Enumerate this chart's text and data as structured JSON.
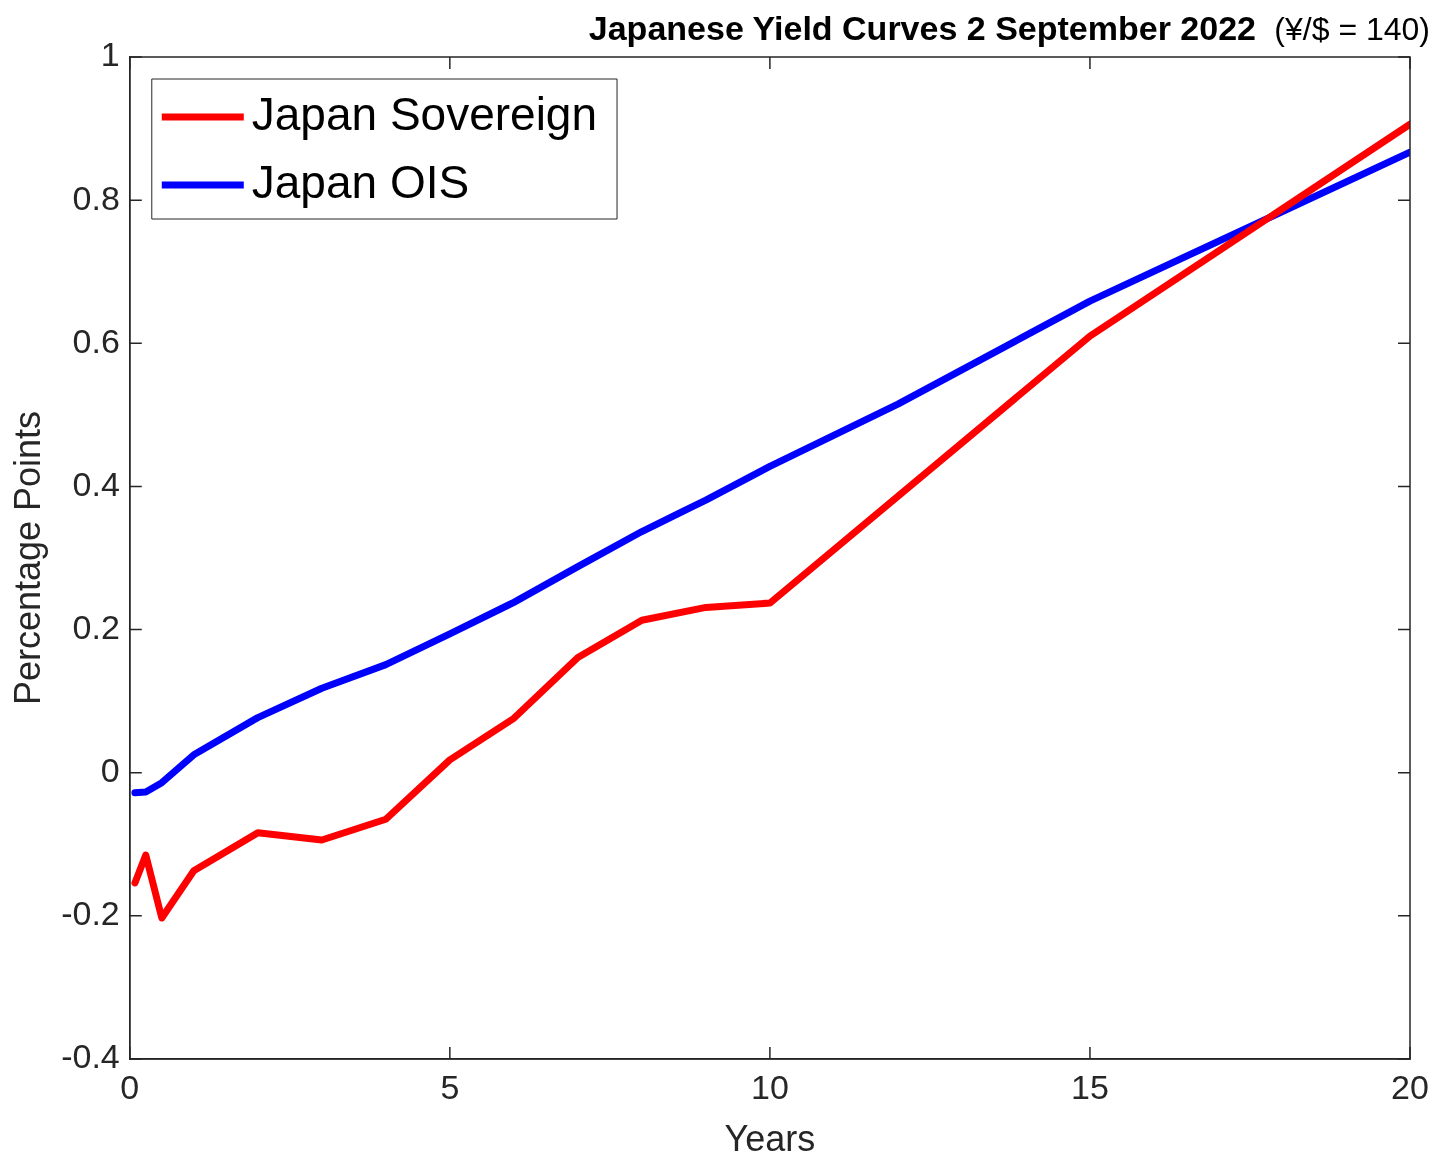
{
  "chart_data": {
    "type": "line",
    "title": "Japanese Yield Curves 2 September 2022",
    "subtitle": "(¥/$ = 140)",
    "xlabel": "Years",
    "ylabel": "Percentage Points",
    "series": [
      {
        "name": "Japan Sovereign",
        "color": "#ff0000",
        "x": [
          0.08,
          0.25,
          0.5,
          1,
          2,
          3,
          4,
          5,
          6,
          7,
          8,
          9,
          10,
          15,
          20
        ],
        "values": [
          -0.154,
          -0.115,
          -0.203,
          -0.137,
          -0.084,
          -0.094,
          -0.065,
          0.018,
          0.076,
          0.161,
          0.213,
          0.231,
          0.237,
          0.61,
          0.906
        ]
      },
      {
        "name": "Japan OIS",
        "color": "#0000ff",
        "x": [
          0.08,
          0.25,
          0.5,
          1,
          2,
          3,
          4,
          5,
          6,
          7,
          8,
          9,
          10,
          12,
          15,
          20
        ],
        "values": [
          -0.028,
          -0.027,
          -0.014,
          0.025,
          0.077,
          0.118,
          0.151,
          0.194,
          0.238,
          0.288,
          0.337,
          0.381,
          0.428,
          0.515,
          0.659,
          0.867
        ]
      }
    ],
    "xlim": [
      0,
      20
    ],
    "xticks": [
      0,
      5,
      10,
      15,
      20
    ],
    "ylim": [
      -0.4,
      1
    ],
    "yticks": [
      -0.4,
      -0.2,
      0,
      0.2,
      0.4,
      0.6,
      0.8,
      1
    ],
    "grid": false,
    "legend": "top left",
    "marker": "none",
    "line_style": "solid"
  }
}
